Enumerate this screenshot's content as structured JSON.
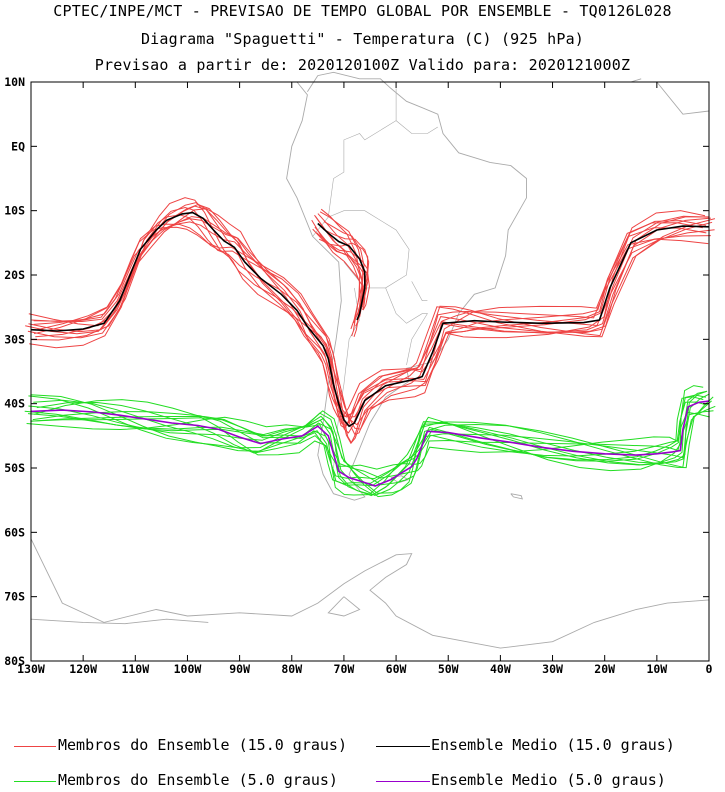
{
  "header": {
    "title": "CPTEC/INPE/MCT - PREVISAO DE TEMPO GLOBAL POR ENSEMBLE - TQ0126L028",
    "subtitle": "Diagrama \"Spaguetti\" - Temperatura (C) (925 hPa)",
    "dates": "Previsao a partir de: 2020120100Z  Valido para: 2020121000Z"
  },
  "chart_data": {
    "type": "line",
    "title": "Diagrama \"Spaguetti\" - Temperatura (C) (925 hPa)",
    "xlim": [
      -130,
      0
    ],
    "ylim": [
      -80,
      10
    ],
    "grid": false,
    "x_ticks": [
      "130W",
      "120W",
      "110W",
      "100W",
      "90W",
      "80W",
      "70W",
      "60W",
      "50W",
      "40W",
      "30W",
      "20W",
      "10W",
      "0"
    ],
    "y_ticks": [
      "10N",
      "EQ",
      "10S",
      "20S",
      "30S",
      "40S",
      "50S",
      "60S",
      "70S",
      "80S"
    ],
    "legend_position": "bottom",
    "colors": {
      "members15": "#ee4444",
      "mean15": "#000000",
      "members5": "#22dd22",
      "mean5": "#9900cc",
      "coast": "#aaaaaa"
    },
    "series": [
      {
        "name": "Ensemble Medio (15.0 graus)",
        "kind": "mean15",
        "x": [
          -130,
          -125,
          -120,
          -116,
          -113,
          -111,
          -109,
          -106,
          -104,
          -101,
          -99,
          -97,
          -95,
          -93,
          -91,
          -89,
          -86,
          -82,
          -79,
          -77,
          -74,
          -73,
          -72,
          -71,
          -70,
          -69,
          -68,
          -66,
          -62,
          -57,
          -55,
          -53,
          -51,
          -48,
          -45,
          -40,
          -32,
          -24,
          -21,
          -19,
          -15,
          -10,
          -5,
          0
        ],
        "y": [
          -28.5,
          -28.7,
          -28.4,
          -27.5,
          -24,
          -20,
          -16,
          -13,
          -11.5,
          -10.5,
          -10.3,
          -11.2,
          -13,
          -14.7,
          -15.7,
          -18,
          -20.5,
          -23,
          -25.5,
          -28,
          -31,
          -33,
          -37,
          -40,
          -42.5,
          -43.5,
          -43,
          -39.5,
          -37.2,
          -36.3,
          -35.8,
          -32,
          -27.5,
          -27.3,
          -27.1,
          -27.3,
          -27.5,
          -27.4,
          -27,
          -22,
          -15,
          -13,
          -12.4,
          -12.5
        ]
      },
      {
        "name": "Ensemble Medio (15.0 graus)",
        "kind": "mean15",
        "x": [
          -75,
          -73,
          -71,
          -69,
          -67,
          -66,
          -66,
          -66.5,
          -67,
          -67.5
        ],
        "y": [
          -12,
          -13.5,
          -14.8,
          -15.5,
          -17.5,
          -19.5,
          -22,
          -24,
          -26,
          -27
        ]
      },
      {
        "name": "Ensemble Medio (5.0 graus)",
        "kind": "mean5",
        "x": [
          -130,
          -124,
          -118,
          -113,
          -108,
          -103,
          -98,
          -94,
          -90,
          -86,
          -82,
          -78,
          -75,
          -73,
          -72,
          -71,
          -69,
          -67,
          -64,
          -61,
          -59,
          -57,
          -56,
          -55,
          -54,
          -50,
          -44,
          -38,
          -32,
          -26,
          -20,
          -14,
          -10,
          -7,
          -5.5,
          -5,
          -4,
          -2,
          0
        ],
        "y": [
          -41.2,
          -41,
          -41.3,
          -41.8,
          -42.4,
          -43,
          -43.4,
          -44,
          -45.2,
          -46.2,
          -45.5,
          -45,
          -43.5,
          -45,
          -47.8,
          -50.5,
          -51.5,
          -52,
          -52.8,
          -51.8,
          -50.8,
          -49.8,
          -48.5,
          -46.5,
          -44.3,
          -44.5,
          -45.3,
          -46,
          -46.8,
          -47.4,
          -47.8,
          -48,
          -47.8,
          -47.5,
          -47.3,
          -44,
          -40.5,
          -39.8,
          -39.6
        ]
      }
    ]
  },
  "legend": {
    "members15": "Membros do Ensemble (15.0 graus)",
    "mean15": "Ensemble Medio (15.0 graus)",
    "members5": "Membros do Ensemble (5.0 graus)",
    "mean5": "Ensemble Medio (5.0 graus)"
  }
}
